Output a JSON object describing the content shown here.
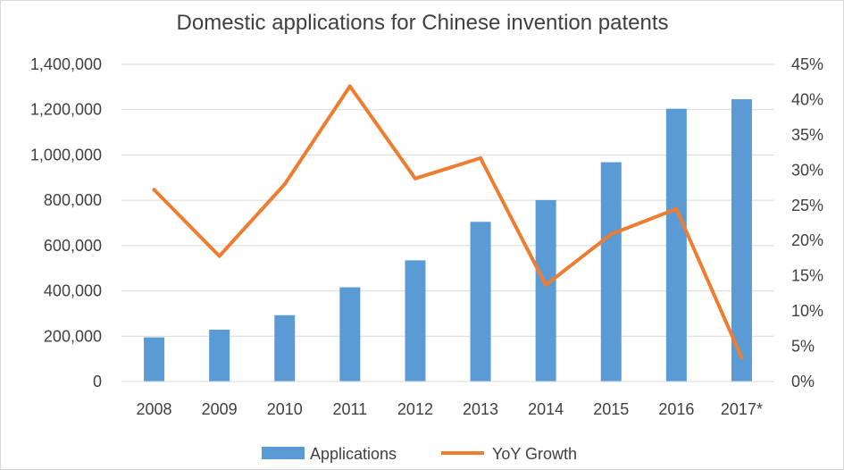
{
  "chart_data": {
    "type": "bar",
    "title": "Domestic applications for Chinese invention patents",
    "categories": [
      "2008",
      "2009",
      "2010",
      "2011",
      "2012",
      "2013",
      "2014",
      "2015",
      "2016",
      "2017*"
    ],
    "series": [
      {
        "name": "Applications",
        "type": "bar",
        "axis": "left",
        "color": "#5b9bd5",
        "values": [
          195000,
          229000,
          293000,
          416000,
          535000,
          705000,
          801000,
          968000,
          1204000,
          1246000
        ]
      },
      {
        "name": "YoY Growth",
        "type": "line",
        "axis": "right",
        "color": "#ed7d31",
        "values": [
          0.272,
          0.178,
          0.28,
          0.419,
          0.288,
          0.317,
          0.137,
          0.209,
          0.245,
          0.034
        ]
      }
    ],
    "y_left": {
      "min": 0,
      "max": 1400000,
      "ticks": [
        0,
        200000,
        400000,
        600000,
        800000,
        1000000,
        1200000,
        1400000
      ],
      "tick_labels": [
        "0",
        "200,000",
        "400,000",
        "600,000",
        "800,000",
        "1,000,000",
        "1,200,000",
        "1,400,000"
      ]
    },
    "y_right": {
      "min": 0,
      "max": 0.45,
      "ticks": [
        0,
        0.05,
        0.1,
        0.15,
        0.2,
        0.25,
        0.3,
        0.35,
        0.4,
        0.45
      ],
      "tick_labels": [
        "0%",
        "5%",
        "10%",
        "15%",
        "20%",
        "25%",
        "30%",
        "35%",
        "40%",
        "45%"
      ]
    },
    "grid": true,
    "legend": "bottom",
    "colors": {
      "gridline": "#d9d9d9",
      "text": "#404040",
      "frame": "#d9d9d9"
    }
  }
}
